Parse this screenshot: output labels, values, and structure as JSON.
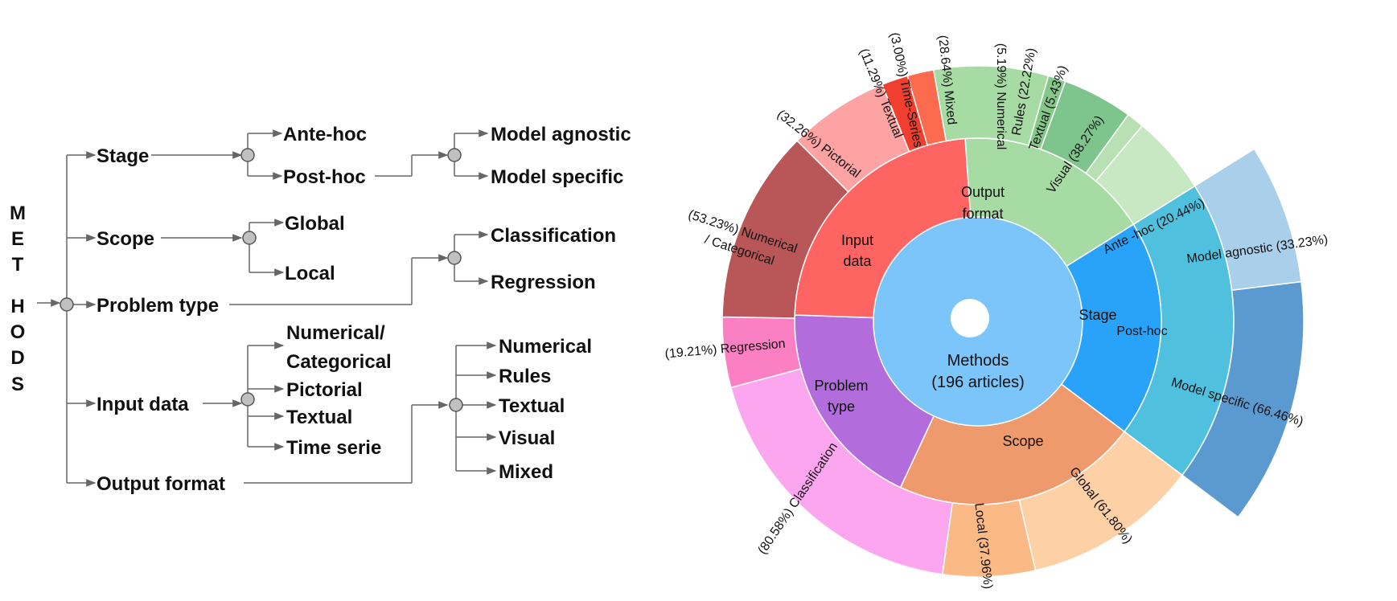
{
  "tree": {
    "root_letters": [
      "M",
      "E",
      "T",
      "H",
      "O",
      "D",
      "S"
    ],
    "nodes": {
      "stage": "Stage",
      "ante_hoc": "Ante-hoc",
      "post_hoc": "Post-hoc",
      "model_agnostic": "Model agnostic",
      "model_specific": "Model specific",
      "scope": "Scope",
      "global": "Global",
      "local": "Local",
      "problem_type": "Problem type",
      "classification": "Classification",
      "regression": "Regression",
      "input_data": "Input data",
      "numcat_1": "Numerical/",
      "numcat_2": "Categorical",
      "pictorial": "Pictorial",
      "textual": "Textual",
      "time_serie": "Time serie",
      "output_format": "Output format",
      "out_numerical": "Numerical",
      "out_rules": "Rules",
      "out_textual": "Textual",
      "out_visual": "Visual",
      "out_mixed": "Mixed"
    }
  },
  "sunburst": {
    "center": {
      "line1": "Methods",
      "line2": "(196 articles)",
      "color": "#7cc5fa"
    },
    "inner": [
      {
        "id": "stage",
        "lines": [
          "Stage"
        ],
        "color": "#29a3fa"
      },
      {
        "id": "scope",
        "lines": [
          "Scope"
        ],
        "color": "#ee9a6c"
      },
      {
        "id": "problem-type",
        "lines": [
          "Problem",
          "type"
        ],
        "color": "#b36cdb"
      },
      {
        "id": "input-data",
        "lines": [
          "Input",
          "data"
        ],
        "color": "#fd6462"
      },
      {
        "id": "output-format",
        "lines": [
          "Output",
          "format"
        ],
        "color": "#a7dba4"
      }
    ],
    "outer": [
      {
        "id": "ante-hoc",
        "label": "Ante -hoc (20.44%)",
        "color": "#a9cfed"
      },
      {
        "id": "post-hoc",
        "label": "Post-hoc",
        "color": "#4fc0dd"
      },
      {
        "id": "global",
        "label": "Global (61.80%)",
        "color": "#fdd0a6"
      },
      {
        "id": "local",
        "label": "Local (37.96%)",
        "color": "#fbb985"
      },
      {
        "id": "classification",
        "label": "(80.58%) Classification",
        "color": "#fca6f0"
      },
      {
        "id": "regression",
        "label": "(19.21%) Regression",
        "color": "#fb7fc3"
      },
      {
        "id": "numerical-categorical",
        "label1": "(53.23%) Numerical",
        "label2": "/ Categorical",
        "color": "#b95657"
      },
      {
        "id": "pictorial",
        "label": "(32.26%) Pictorial",
        "color": "#fda3a4"
      },
      {
        "id": "textual-in",
        "label": "(11.29%) Textual",
        "color": "#f03f2e"
      },
      {
        "id": "time-series",
        "label": "(3.00%) Time-Series",
        "color": "#fd6b4f"
      },
      {
        "id": "mixed",
        "label": "(28.64%) Mixed",
        "color": "#a7dba4"
      },
      {
        "id": "numerical-out",
        "label": "(5.19%) Numerical",
        "color": "#85c98a"
      },
      {
        "id": "rules",
        "label": "Rules (22.22%)",
        "color": "#7dc58c"
      },
      {
        "id": "textual-out",
        "label": "Textual (5.43%)",
        "color": "#b8e0b2"
      },
      {
        "id": "visual",
        "label": "Visual (38.27%)",
        "color": "#c7e8c2"
      }
    ],
    "third": [
      {
        "id": "model-agnostic",
        "label": "Model agnostic (33.23%)",
        "color": "#a9cfea"
      },
      {
        "id": "model-specific",
        "label": "Model specific (66.46%)",
        "color": "#5b9ad0"
      }
    ]
  }
}
